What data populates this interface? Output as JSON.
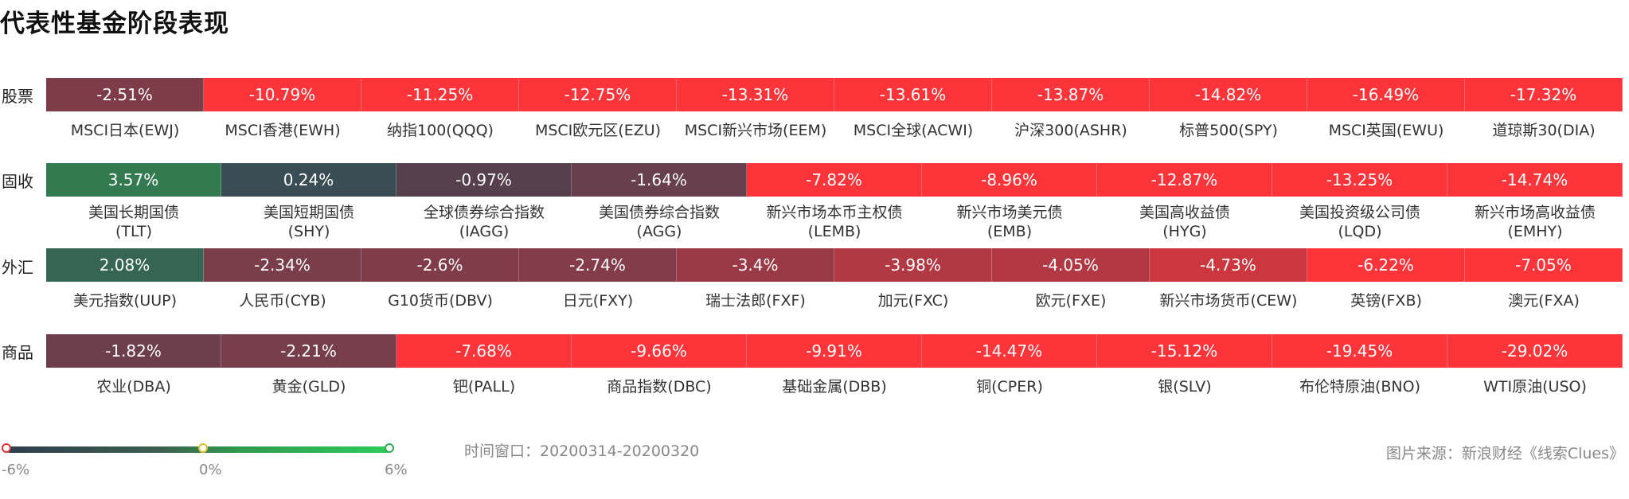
{
  "title": "代表性基金阶段表现",
  "time_window": "时间窗口：20200314-20200320",
  "source": "图片来源：新浪财经《线索Clues》",
  "legend": {
    "min_label": "-6%",
    "mid_label": "0%",
    "max_label": "6%"
  },
  "colors": {
    "positive": "#2e9a4e",
    "zero": "#344553",
    "negative_max": "#fd3439"
  },
  "chart_data": {
    "type": "heatmap",
    "title": "代表性基金阶段表现",
    "value_unit": "%",
    "color_scale": {
      "min": -6,
      "mid": 0,
      "max": 6
    },
    "rows": [
      {
        "category": "股票",
        "cells": [
          {
            "name": "MSCI日本(EWJ)",
            "value": -2.51,
            "label": "-2.51%"
          },
          {
            "name": "MSCI香港(EWH)",
            "value": -10.79,
            "label": "-10.79%"
          },
          {
            "name": "纳指100(QQQ)",
            "value": -11.25,
            "label": "-11.25%"
          },
          {
            "name": "MSCI欧元区(EZU)",
            "value": -12.75,
            "label": "-12.75%"
          },
          {
            "name": "MSCI新兴市场(EEM)",
            "value": -13.31,
            "label": "-13.31%"
          },
          {
            "name": "MSCI全球(ACWI)",
            "value": -13.61,
            "label": "-13.61%"
          },
          {
            "name": "沪深300(ASHR)",
            "value": -13.87,
            "label": "-13.87%"
          },
          {
            "name": "标普500(SPY)",
            "value": -14.82,
            "label": "-14.82%"
          },
          {
            "name": "MSCI英国(EWU)",
            "value": -16.49,
            "label": "-16.49%"
          },
          {
            "name": "道琼斯30(DIA)",
            "value": -17.32,
            "label": "-17.32%"
          }
        ]
      },
      {
        "category": "固收",
        "cells": [
          {
            "name": "美国长期国债",
            "code": "(TLT)",
            "value": 3.57,
            "label": "3.57%"
          },
          {
            "name": "美国短期国债",
            "code": "(SHY)",
            "value": 0.24,
            "label": "0.24%"
          },
          {
            "name": "全球债券综合指数",
            "code": "(IAGG)",
            "value": -0.97,
            "label": "-0.97%"
          },
          {
            "name": "美国债券综合指数",
            "code": "(AGG)",
            "value": -1.64,
            "label": "-1.64%"
          },
          {
            "name": "新兴市场本币主权债",
            "code": "(LEMB)",
            "value": -7.82,
            "label": "-7.82%"
          },
          {
            "name": "新兴市场美元债",
            "code": "(EMB)",
            "value": -8.96,
            "label": "-8.96%"
          },
          {
            "name": "美国高收益债",
            "code": "(HYG)",
            "value": -12.87,
            "label": "-12.87%"
          },
          {
            "name": "美国投资级公司债",
            "code": "(LQD)",
            "value": -13.25,
            "label": "-13.25%"
          },
          {
            "name": "新兴市场高收益债",
            "code": "(EMHY)",
            "value": -14.74,
            "label": "-14.74%"
          }
        ]
      },
      {
        "category": "外汇",
        "cells": [
          {
            "name": "美元指数(UUP)",
            "value": 2.08,
            "label": "2.08%"
          },
          {
            "name": "人民币(CYB)",
            "value": -2.34,
            "label": "-2.34%"
          },
          {
            "name": "G10货币(DBV)",
            "value": -2.6,
            "label": "-2.6%"
          },
          {
            "name": "日元(FXY)",
            "value": -2.74,
            "label": "-2.74%"
          },
          {
            "name": "瑞士法郎(FXF)",
            "value": -3.4,
            "label": "-3.4%"
          },
          {
            "name": "加元(FXC)",
            "value": -3.98,
            "label": "-3.98%"
          },
          {
            "name": "欧元(FXE)",
            "value": -4.05,
            "label": "-4.05%"
          },
          {
            "name": "新兴市场货币(CEW)",
            "value": -4.73,
            "label": "-4.73%"
          },
          {
            "name": "英镑(FXB)",
            "value": -6.22,
            "label": "-6.22%"
          },
          {
            "name": "澳元(FXA)",
            "value": -7.05,
            "label": "-7.05%"
          }
        ]
      },
      {
        "category": "商品",
        "cells": [
          {
            "name": "农业(DBA)",
            "value": -1.82,
            "label": "-1.82%"
          },
          {
            "name": "黄金(GLD)",
            "value": -2.21,
            "label": "-2.21%"
          },
          {
            "name": "钯(PALL)",
            "value": -7.68,
            "label": "-7.68%"
          },
          {
            "name": "商品指数(DBC)",
            "value": -9.66,
            "label": "-9.66%"
          },
          {
            "name": "基础金属(DBB)",
            "value": -9.91,
            "label": "-9.91%"
          },
          {
            "name": "铜(CPER)",
            "value": -14.47,
            "label": "-14.47%"
          },
          {
            "name": "银(SLV)",
            "value": -15.12,
            "label": "-15.12%"
          },
          {
            "name": "布伦特原油(BNO)",
            "value": -19.45,
            "label": "-19.45%"
          },
          {
            "name": "WTI原油(USO)",
            "value": -29.02,
            "label": "-29.02%"
          }
        ]
      }
    ]
  }
}
